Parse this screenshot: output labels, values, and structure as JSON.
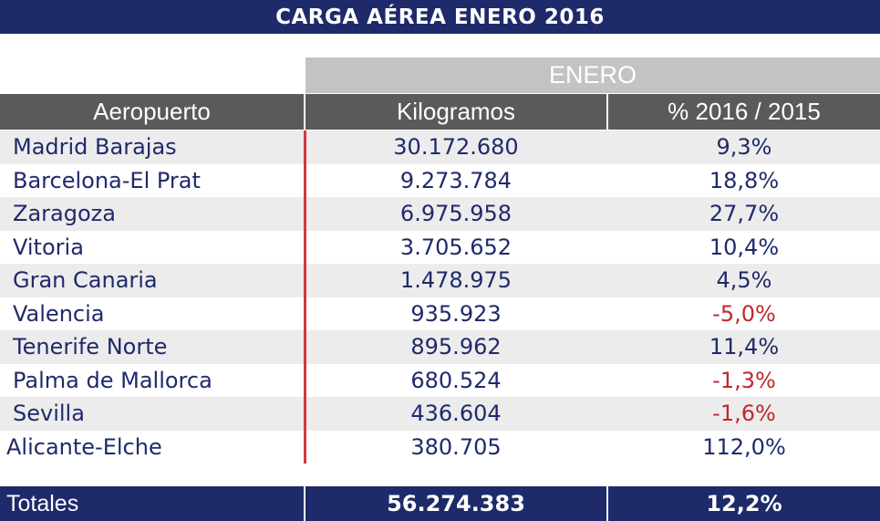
{
  "header": {
    "title": "CARGA AÉREA ENERO 2016"
  },
  "table": {
    "group_header": "ENERO",
    "columns": [
      "Aeropuerto",
      "Kilogramos",
      "% 2016 / 2015"
    ],
    "rows": [
      [
        "Madrid Barajas",
        "30.172.680",
        "9,3%"
      ],
      [
        "Barcelona-El Prat",
        "9.273.784",
        "18,8%"
      ],
      [
        "Zaragoza",
        "6.975.958",
        "27,7%"
      ],
      [
        "Vitoria",
        "3.705.652",
        "10,4%"
      ],
      [
        "Gran Canaria",
        "1.478.975",
        "4,5%"
      ],
      [
        "Valencia",
        "935.923",
        "-5,0%"
      ],
      [
        "Tenerife Norte",
        "895.962",
        "11,4%"
      ],
      [
        "Palma de Mallorca",
        "680.524",
        "-1,3%"
      ],
      [
        "Sevilla",
        "436.604",
        "-1,6%"
      ],
      [
        "Alicante-Elche",
        "380.705",
        "112,0%"
      ]
    ],
    "totals": [
      "Totales",
      "56.274.383",
      "12,2%"
    ]
  }
}
